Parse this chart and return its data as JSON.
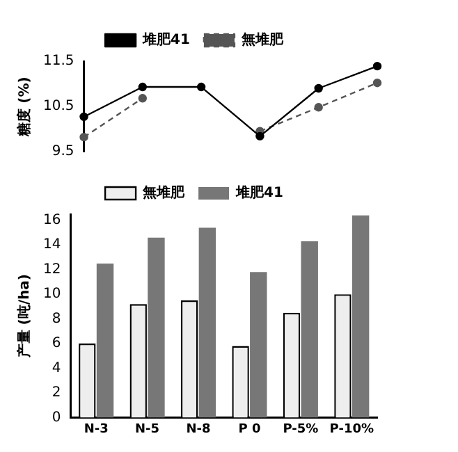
{
  "chart_data": [
    {
      "type": "line",
      "ylabel": "糖度 (%)",
      "categories": [
        null,
        null,
        null,
        null,
        null,
        null
      ],
      "tick_labels": "y",
      "ylim": [
        9.5,
        11.5
      ],
      "yticks": [
        9.5,
        10.5,
        11.5
      ],
      "grid": false,
      "legend": "top",
      "marker": "circle",
      "series": [
        {
          "name": "堆肥41",
          "color": "#000000",
          "line_style": "solid",
          "values": [
            10.27,
            10.93,
            10.93,
            9.84,
            10.9,
            11.39
          ]
        },
        {
          "name": "無堆肥",
          "color": "#555555",
          "line_style": "dashed",
          "values": [
            9.82,
            10.68,
            null,
            9.95,
            10.48,
            11.02
          ]
        }
      ]
    },
    {
      "type": "bar",
      "ylabel": "产量 (吨/ha)",
      "categories": [
        "N-3",
        "N-5",
        "N-8",
        "P 0",
        "P-5%",
        "P-10%"
      ],
      "ylim": [
        0,
        16.5
      ],
      "yticks": [
        0,
        2,
        4,
        6,
        8,
        10,
        12,
        14,
        16
      ],
      "grid": false,
      "legend": "top",
      "series": [
        {
          "name": "無堆肥",
          "color": "#eeeeee",
          "values": [
            6.0,
            9.2,
            9.5,
            5.8,
            8.5,
            10.0
          ]
        },
        {
          "name": "堆肥41",
          "color": "#777777",
          "values": [
            12.5,
            14.6,
            15.4,
            11.8,
            14.3,
            16.4
          ]
        }
      ]
    }
  ]
}
